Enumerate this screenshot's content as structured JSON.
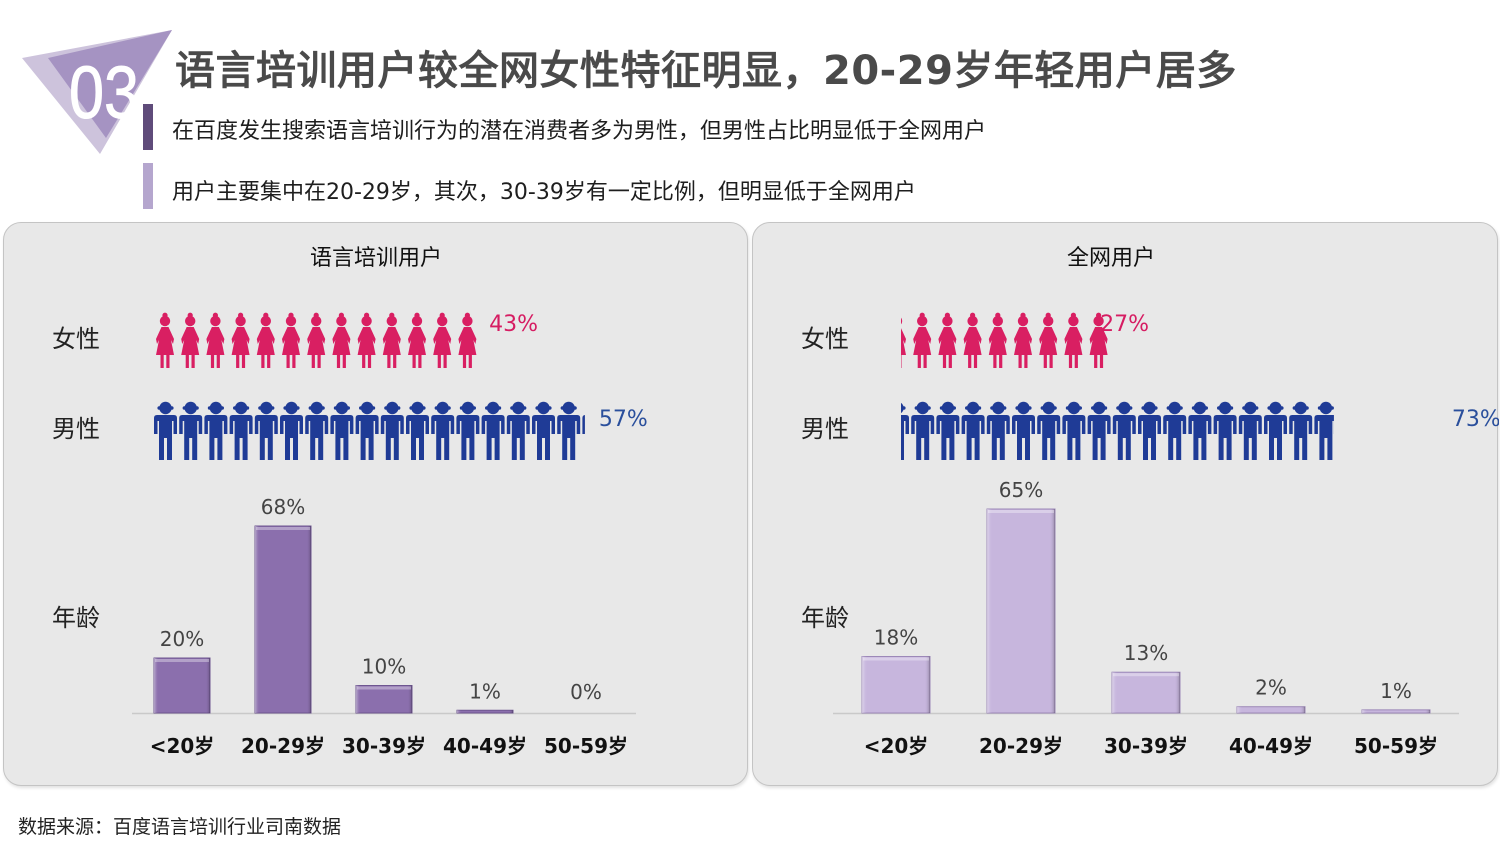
{
  "header": {
    "badge_number": "03",
    "title": "语言培训用户较全网女性特征明显，20-29岁年轻用户居多",
    "bullets": [
      "在百度发生搜索语言培训行为的潜在消费者多为男性，但男性占比明显低于全网用户",
      "用户主要集中在20-29岁，其次，30-39岁有一定比例，但明显低于全网用户"
    ]
  },
  "colors": {
    "female": "#d91f62",
    "male": "#1f3b96",
    "bar_left": "#8b6fad",
    "bar_right": "#c7b6dd",
    "female_text": "#d61c62",
    "male_text": "#2a4f9c"
  },
  "row_labels": {
    "female": "女性",
    "male": "男性",
    "age": "年龄"
  },
  "chart_data": [
    {
      "type": "bar",
      "title": "语言培训用户",
      "gender": [
        {
          "name": "女性",
          "value": 43,
          "label": "43%"
        },
        {
          "name": "男性",
          "value": 57,
          "label": "57%"
        }
      ],
      "categories": [
        "<20岁",
        "20-29岁",
        "30-39岁",
        "40-49岁",
        "50-59岁"
      ],
      "values": [
        20,
        68,
        10,
        1,
        0
      ],
      "value_labels": [
        "20%",
        "68%",
        "10%",
        "1%",
        "0%"
      ],
      "ylim": [
        0,
        68
      ]
    },
    {
      "type": "bar",
      "title": "全网用户",
      "gender": [
        {
          "name": "女性",
          "value": 27,
          "label": "27%"
        },
        {
          "name": "男性",
          "value": 73,
          "label": "73%"
        }
      ],
      "categories": [
        "<20岁",
        "20-29岁",
        "30-39岁",
        "40-49岁",
        "50-59岁"
      ],
      "values": [
        18,
        65,
        13,
        2,
        1
      ],
      "value_labels": [
        "18%",
        "65%",
        "13%",
        "2%",
        "1%"
      ],
      "ylim": [
        0,
        65
      ]
    }
  ],
  "source": "数据来源：百度语言培训行业司南数据"
}
